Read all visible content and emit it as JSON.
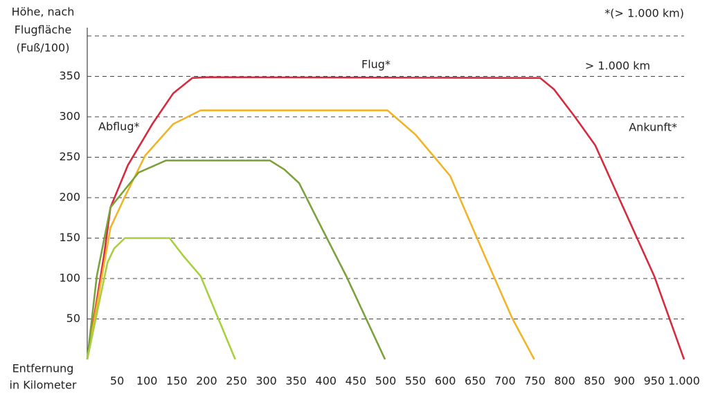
{
  "chart_data": {
    "type": "line",
    "y_label": [
      "Höhe, nach",
      "Flugfläche",
      "(Fuß/100)"
    ],
    "x_label": [
      "Entfernung",
      "in Kilometer"
    ],
    "annotations": [
      "*(> 1.000 km)",
      "Flug*",
      "> 1.000 km",
      "Abflug*",
      "Ankunft*"
    ],
    "xlim": [
      0,
      1000
    ],
    "xticks": [
      50,
      100,
      150,
      200,
      250,
      300,
      350,
      400,
      450,
      500,
      550,
      600,
      650,
      700,
      750,
      800,
      850,
      900,
      950,
      {
        "value": 1000,
        "label": "1.000"
      }
    ],
    "ylim": [
      0,
      400
    ],
    "yticks": [
      50,
      100,
      150,
      200,
      250,
      300,
      350
    ],
    "grid": true,
    "series": [
      {
        "color": "#d62a3f",
        "x": [
          0,
          28,
          39,
          68,
          109,
          144,
          176,
          202,
          759,
          782,
          817,
          851,
          898,
          950,
          1000
        ],
        "values": [
          0,
          128,
          188,
          240,
          291,
          329,
          348,
          349,
          348,
          334,
          300,
          265,
          188,
          103,
          0
        ]
      },
      {
        "color": "#f0b429",
        "x": [
          0,
          39,
          63,
          97,
          144,
          190,
          503,
          550,
          608,
          666,
          712,
          749
        ],
        "values": [
          0,
          163,
          201,
          252,
          291,
          308,
          308,
          278,
          227,
          128,
          51,
          0
        ]
      },
      {
        "color": "#7ba23a",
        "x": [
          0,
          16,
          39,
          86,
          132,
          306,
          330,
          355,
          387,
          434,
          499
        ],
        "values": [
          0,
          103,
          188,
          231,
          246,
          246,
          235,
          218,
          171,
          103,
          0
        ]
      },
      {
        "color": "#a8cf3e",
        "x": [
          0,
          34,
          45,
          63,
          138,
          161,
          190,
          248
        ],
        "values": [
          0,
          120,
          137,
          150,
          150,
          128,
          103,
          0
        ]
      }
    ]
  }
}
